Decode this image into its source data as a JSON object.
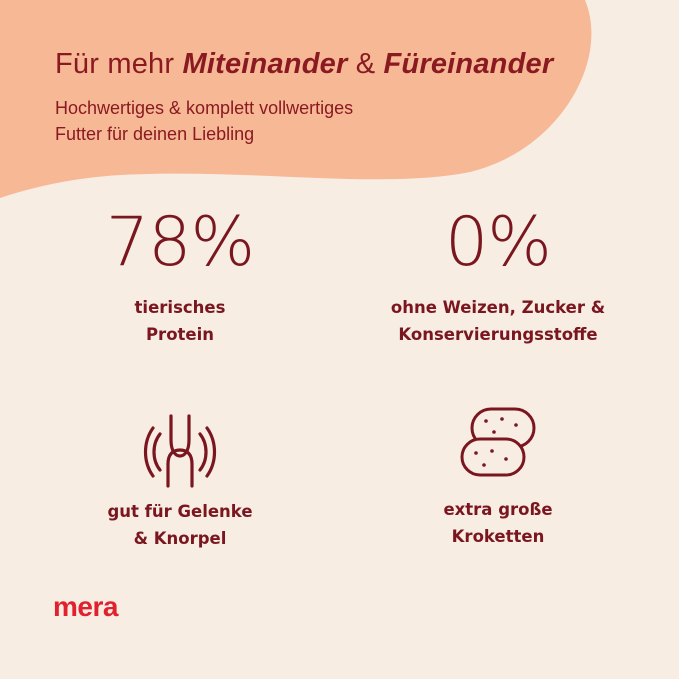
{
  "header": {
    "title_prefix": "Für mehr ",
    "title_em1": "Miteinander",
    "title_mid": " & ",
    "title_em2": "Füreinander",
    "subtitle_line1": "Hochwertiges & komplett vollwertiges",
    "subtitle_line2": "Futter für deinen Liebling"
  },
  "features": [
    {
      "value": "78%",
      "line1": "tierisches",
      "line2": "Protein"
    },
    {
      "value": "0%",
      "line1": "ohne Weizen, Zucker &",
      "line2": "Konservierungsstoffe"
    },
    {
      "icon": "joint-icon",
      "line1": "gut für Gelenke",
      "line2": "& Knorpel"
    },
    {
      "icon": "kibble-icon",
      "line1": "extra große",
      "line2": "Kroketten"
    }
  ],
  "brand": {
    "logo_text": "mera"
  },
  "colors": {
    "background": "#f7ede2",
    "blob": "#f7b896",
    "primary": "#8a1a22",
    "logo": "#e0212e"
  }
}
